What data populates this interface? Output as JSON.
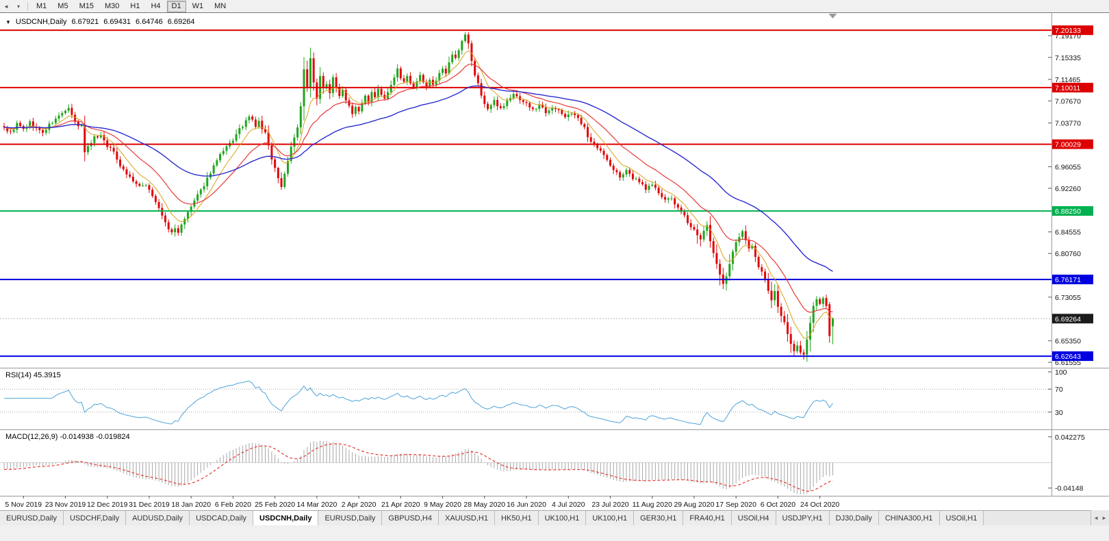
{
  "toolbar": {
    "timeframes": [
      "M1",
      "M5",
      "M15",
      "M30",
      "H1",
      "H4",
      "D1",
      "W1",
      "MN"
    ],
    "active_timeframe": "D1"
  },
  "icons": {
    "collapse": "▼",
    "scroll_left": "◄",
    "dropdown": "▾",
    "tab_scroll_left": "◄",
    "tab_scroll_right": "►"
  },
  "chart_header": {
    "symbol_label": "USDCNH,Daily",
    "open": "6.67921",
    "high": "6.69431",
    "low": "6.64746",
    "close": "6.69264"
  },
  "colors": {
    "candle_up": "#1fa51f",
    "candle_down": "#e00707",
    "axis_text": "#111111",
    "badge_current_bg": "#1c1c1c",
    "separator": "#9a9a9a",
    "shift_marker": "#9a9a9a"
  },
  "chart_data": {
    "type": "candlestick",
    "symbol": "USDCNH",
    "timeframe": "Daily",
    "num_candles": 258,
    "noise_seed": 9,
    "last_candle_ohlc": [
      6.67921,
      6.69431,
      6.64746,
      6.69264
    ],
    "prev_candle_ohlc": [
      6.718,
      6.722,
      6.65,
      6.662
    ],
    "close_anchors": [
      [
        0,
        7.03
      ],
      [
        2,
        7.02
      ],
      [
        4,
        7.036
      ],
      [
        6,
        7.026
      ],
      [
        8,
        7.038
      ],
      [
        10,
        7.028
      ],
      [
        12,
        7.02
      ],
      [
        14,
        7.034
      ],
      [
        16,
        7.044
      ],
      [
        18,
        7.056
      ],
      [
        20,
        7.062
      ],
      [
        21,
        7.05
      ],
      [
        22,
        7.04
      ],
      [
        23,
        7.03
      ],
      [
        24,
        7.036
      ],
      [
        25,
        6.985
      ],
      [
        26,
        6.998
      ],
      [
        28,
        7.012
      ],
      [
        30,
        7.016
      ],
      [
        32,
        6.998
      ],
      [
        34,
        6.986
      ],
      [
        36,
        6.964
      ],
      [
        38,
        6.948
      ],
      [
        40,
        6.936
      ],
      [
        42,
        6.924
      ],
      [
        44,
        6.93
      ],
      [
        46,
        6.91
      ],
      [
        48,
        6.886
      ],
      [
        50,
        6.862
      ],
      [
        51,
        6.85
      ],
      [
        52,
        6.844
      ],
      [
        53,
        6.852
      ],
      [
        54,
        6.846
      ],
      [
        55,
        6.856
      ],
      [
        57,
        6.88
      ],
      [
        59,
        6.9
      ],
      [
        61,
        6.918
      ],
      [
        63,
        6.94
      ],
      [
        65,
        6.962
      ],
      [
        67,
        6.98
      ],
      [
        69,
        6.994
      ],
      [
        71,
        7.008
      ],
      [
        73,
        7.026
      ],
      [
        75,
        7.04
      ],
      [
        76,
        7.048
      ],
      [
        77,
        7.042
      ],
      [
        78,
        7.032
      ],
      [
        79,
        7.04
      ],
      [
        80,
        7.028
      ],
      [
        81,
        7.02
      ],
      [
        82,
        6.996
      ],
      [
        83,
        6.976
      ],
      [
        84,
        6.958
      ],
      [
        85,
        6.94
      ],
      [
        86,
        6.926
      ],
      [
        87,
        6.948
      ],
      [
        88,
        6.972
      ],
      [
        89,
        6.996
      ],
      [
        90,
        7.014
      ],
      [
        91,
        7.028
      ],
      [
        92,
        7.066
      ],
      [
        93,
        7.132
      ],
      [
        94,
        7.098
      ],
      [
        95,
        7.15
      ],
      [
        96,
        7.112
      ],
      [
        97,
        7.082
      ],
      [
        98,
        7.12
      ],
      [
        99,
        7.098
      ],
      [
        100,
        7.108
      ],
      [
        101,
        7.092
      ],
      [
        102,
        7.116
      ],
      [
        103,
        7.1
      ],
      [
        104,
        7.088
      ],
      [
        105,
        7.096
      ],
      [
        106,
        7.08
      ],
      [
        107,
        7.07
      ],
      [
        108,
        7.056
      ],
      [
        109,
        7.068
      ],
      [
        110,
        7.06
      ],
      [
        111,
        7.074
      ],
      [
        112,
        7.084
      ],
      [
        113,
        7.076
      ],
      [
        114,
        7.09
      ],
      [
        115,
        7.082
      ],
      [
        116,
        7.096
      ],
      [
        117,
        7.088
      ],
      [
        118,
        7.078
      ],
      [
        119,
        7.092
      ],
      [
        120,
        7.102
      ],
      [
        121,
        7.116
      ],
      [
        122,
        7.134
      ],
      [
        123,
        7.118
      ],
      [
        124,
        7.108
      ],
      [
        125,
        7.118
      ],
      [
        126,
        7.11
      ],
      [
        127,
        7.102
      ],
      [
        128,
        7.112
      ],
      [
        129,
        7.12
      ],
      [
        130,
        7.11
      ],
      [
        131,
        7.102
      ],
      [
        132,
        7.112
      ],
      [
        133,
        7.104
      ],
      [
        134,
        7.112
      ],
      [
        135,
        7.124
      ],
      [
        136,
        7.136
      ],
      [
        137,
        7.128
      ],
      [
        138,
        7.142
      ],
      [
        139,
        7.156
      ],
      [
        140,
        7.15
      ],
      [
        141,
        7.164
      ],
      [
        142,
        7.18
      ],
      [
        143,
        7.192
      ],
      [
        144,
        7.176
      ],
      [
        145,
        7.148
      ],
      [
        146,
        7.122
      ],
      [
        147,
        7.106
      ],
      [
        148,
        7.088
      ],
      [
        149,
        7.072
      ],
      [
        150,
        7.062
      ],
      [
        152,
        7.076
      ],
      [
        154,
        7.064
      ],
      [
        156,
        7.076
      ],
      [
        158,
        7.088
      ],
      [
        160,
        7.08
      ],
      [
        162,
        7.072
      ],
      [
        164,
        7.06
      ],
      [
        166,
        7.07
      ],
      [
        168,
        7.058
      ],
      [
        170,
        7.066
      ],
      [
        172,
        7.058
      ],
      [
        174,
        7.05
      ],
      [
        176,
        7.056
      ],
      [
        178,
        7.044
      ],
      [
        180,
        7.028
      ],
      [
        181,
        7.012
      ],
      [
        183,
        7.002
      ],
      [
        185,
        6.988
      ],
      [
        187,
        6.972
      ],
      [
        189,
        6.954
      ],
      [
        191,
        6.944
      ],
      [
        193,
        6.952
      ],
      [
        195,
        6.94
      ],
      [
        197,
        6.936
      ],
      [
        199,
        6.922
      ],
      [
        201,
        6.93
      ],
      [
        203,
        6.914
      ],
      [
        205,
        6.9
      ],
      [
        207,
        6.906
      ],
      [
        209,
        6.886
      ],
      [
        211,
        6.872
      ],
      [
        213,
        6.856
      ],
      [
        215,
        6.842
      ],
      [
        216,
        6.83
      ],
      [
        217,
        6.846
      ],
      [
        218,
        6.856
      ],
      [
        219,
        6.832
      ],
      [
        220,
        6.806
      ],
      [
        221,
        6.788
      ],
      [
        222,
        6.768
      ],
      [
        223,
        6.756
      ],
      [
        224,
        6.77
      ],
      [
        225,
        6.79
      ],
      [
        226,
        6.81
      ],
      [
        227,
        6.826
      ],
      [
        228,
        6.838
      ],
      [
        229,
        6.844
      ],
      [
        230,
        6.832
      ],
      [
        231,
        6.816
      ],
      [
        232,
        6.82
      ],
      [
        233,
        6.8
      ],
      [
        234,
        6.786
      ],
      [
        235,
        6.774
      ],
      [
        236,
        6.762
      ],
      [
        237,
        6.742
      ],
      [
        238,
        6.726
      ],
      [
        239,
        6.74
      ],
      [
        240,
        6.712
      ],
      [
        241,
        6.696
      ],
      [
        242,
        6.684
      ],
      [
        243,
        6.664
      ],
      [
        244,
        6.65
      ],
      [
        245,
        6.636
      ],
      [
        246,
        6.648
      ],
      [
        247,
        6.634
      ],
      [
        248,
        6.628
      ],
      [
        249,
        6.654
      ],
      [
        250,
        6.688
      ],
      [
        251,
        6.714
      ],
      [
        252,
        6.728
      ],
      [
        253,
        6.718
      ],
      [
        254,
        6.726
      ],
      [
        255,
        6.712
      ],
      [
        256,
        6.662
      ],
      [
        257,
        6.693
      ]
    ],
    "volatile_zones": [
      [
        92,
        98
      ],
      [
        215,
        225
      ],
      [
        238,
        251
      ]
    ],
    "price_axis": {
      "min": 6.606,
      "max": 7.2329,
      "ticks": [
        "7.19170",
        "7.15335",
        "7.11465",
        "7.07670",
        "7.03770",
        "6.96055",
        "6.92260",
        "6.84555",
        "6.80760",
        "6.73055",
        "6.65350",
        "6.61555"
      ]
    },
    "hlines": [
      {
        "value": 7.20133,
        "label": "7.20133",
        "color": "#dd0000"
      },
      {
        "value": 7.10011,
        "label": "7.10011",
        "color": "#dd0000"
      },
      {
        "value": 7.00029,
        "label": "7.00029",
        "color": "#dd0000"
      },
      {
        "value": 6.8825,
        "label": "6.88250",
        "color": "#00b050"
      },
      {
        "value": 6.76171,
        "label": "6.76171",
        "color": "#0000e0"
      },
      {
        "value": 6.62643,
        "label": "6.62643",
        "color": "#0000e0"
      }
    ],
    "current_price": {
      "value": 6.69264,
      "label": "6.69264"
    },
    "moving_averages": [
      {
        "period": 8,
        "color": "#d9a21b",
        "type": "ema"
      },
      {
        "period": 20,
        "color": "#e53935",
        "type": "ema"
      },
      {
        "period": 55,
        "color": "#2b2bd0",
        "type": "ema"
      }
    ],
    "x_labels": [
      "5 Nov 2019",
      "23 Nov 2019",
      "12 Dec 2019",
      "31 Dec 2019",
      "18 Jan 2020",
      "6 Feb 2020",
      "25 Feb 2020",
      "14 Mar 2020",
      "2 Apr 2020",
      "21 Apr 2020",
      "9 May 2020",
      "28 May 2020",
      "16 Jun 2020",
      "4 Jul 2020",
      "23 Jul 2020",
      "11 Aug 2020",
      "29 Aug 2020",
      "17 Sep 2020",
      "6 Oct 2020",
      "24 Oct 2020"
    ],
    "x_label_first_index": 6,
    "x_label_step": 13,
    "rsi": {
      "label": "RSI(14) 45.3915",
      "period": 14,
      "last_value": 45.3915,
      "levels": [
        70,
        30
      ],
      "ticks": [
        "100",
        "70",
        "30"
      ],
      "color": "#4da3d9"
    },
    "macd": {
      "label": "MACD(12,26,9) -0.014938 -0.019824",
      "fast": 12,
      "slow": 26,
      "signal": 9,
      "values": [
        -0.014938,
        -0.019824
      ],
      "ticks": [
        "0.042275",
        "-0.04148"
      ],
      "ymax": 0.0466,
      "ymin": -0.0474,
      "hist_color": "#a6a6a6",
      "signal_color": "#e53935"
    }
  },
  "bottom_tabs": {
    "active_index": 4,
    "tabs": [
      "EURUSD,Daily",
      "USDCHF,Daily",
      "AUDUSD,Daily",
      "USDCAD,Daily",
      "USDCNH,Daily",
      "EURUSD,Daily",
      "GBPUSD,H4",
      "XAUUSD,H1",
      "HK50,H1",
      "UK100,H1",
      "UK100,H1",
      "GER30,H1",
      "FRA40,H1",
      "USOil,H4",
      "USDJPY,H1",
      "DJ30,Daily",
      "CHINA300,H1",
      "USOil,H1"
    ]
  }
}
